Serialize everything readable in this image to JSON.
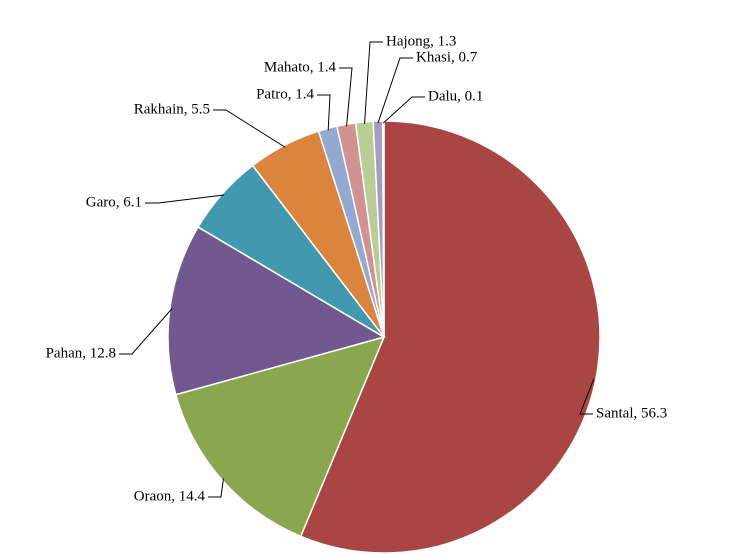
{
  "chart_data": {
    "type": "pie",
    "values": [
      56.3,
      14.4,
      12.8,
      6.1,
      5.5,
      1.4,
      1.4,
      1.3,
      0.7,
      0.1
    ],
    "value_labels": [
      "Santal, 56.3",
      "Oraon, 14.4",
      "Pahan, 12.8",
      "Garo, 6.1",
      "Rakhain, 5.5",
      "Patro, 1.4",
      "Mahato, 1.4",
      "Hajong, 1.3",
      "Khasi, 0.7",
      "Dalu, 0.1"
    ],
    "colors": [
      "#a94643",
      "#8aa64e",
      "#71588f",
      "#4198af",
      "#db843d",
      "#93a9cf",
      "#d19392",
      "#b9cd96",
      "#a99bbd",
      "#91c3d5"
    ]
  }
}
